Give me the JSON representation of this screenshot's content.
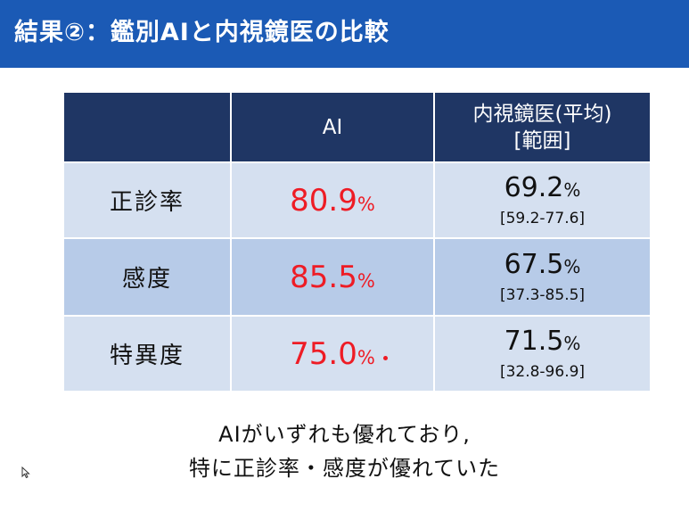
{
  "header": {
    "title": "結果②：鑑別AIと内視鏡医の比較",
    "bg_color": "#1b5ab5"
  },
  "table": {
    "col_headers": {
      "ai": "AI",
      "endoscopist_line1": "内視鏡医(平均)",
      "endoscopist_line2": "[範囲]"
    },
    "rows": [
      {
        "label": "正診率",
        "ai_value": "80.9",
        "ai_unit": "%",
        "endo_value": "69.2",
        "endo_unit": "%",
        "endo_range": "[59.2-77.6]"
      },
      {
        "label": "感度",
        "ai_value": "85.5",
        "ai_unit": "%",
        "endo_value": "67.5",
        "endo_unit": "%",
        "endo_range": "[37.3-85.5]"
      },
      {
        "label": "特異度",
        "ai_value": "75.0",
        "ai_unit": "%",
        "endo_value": "71.5",
        "endo_unit": "%",
        "endo_range": "[32.8-96.9]"
      }
    ],
    "colors": {
      "header_bg": "#1f3664",
      "row_light": "#d5e0f0",
      "row_mid": "#b7cbe8",
      "ai_value_color": "#ee1c25"
    }
  },
  "conclusion": {
    "line1": "AIがいずれも優れており,",
    "line2": "特に正診率・感度が優れていた"
  },
  "cursor": {
    "icon": "mouse-pointer-icon"
  }
}
